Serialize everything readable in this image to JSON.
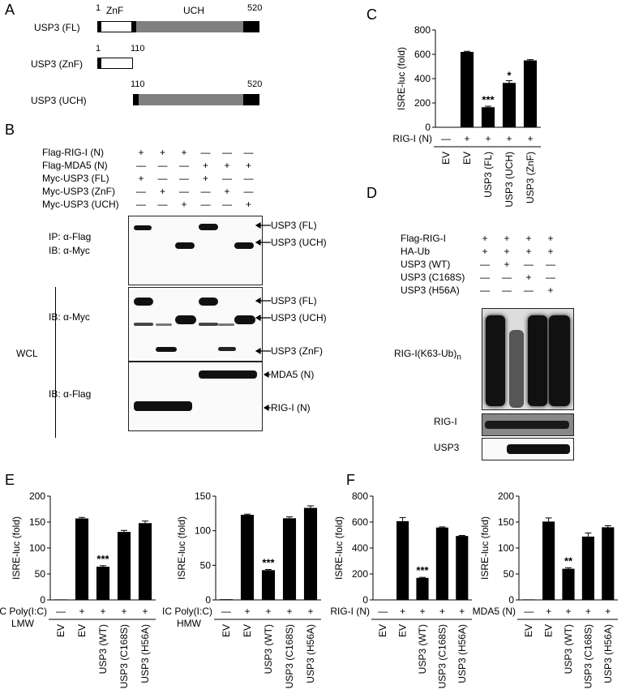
{
  "panels": {
    "A": "A",
    "B": "B",
    "C": "C",
    "D": "D",
    "E": "E",
    "F": "F"
  },
  "panelA": {
    "constructs": [
      {
        "label": "USP3 (FL)",
        "start": "1",
        "end": "520"
      },
      {
        "label": "USP3 (ZnF)",
        "start": "1",
        "end": "110"
      },
      {
        "label": "USP3 (UCH)",
        "start": "110",
        "end": "520"
      }
    ],
    "domain_znf": "ZnF",
    "domain_uch": "UCH"
  },
  "panelB": {
    "rows": [
      {
        "label": "Flag-RIG-I (N)",
        "signs": [
          "+",
          "+",
          "+",
          "—",
          "—",
          "—"
        ]
      },
      {
        "label": "Flag-MDA5 (N)",
        "signs": [
          "—",
          "—",
          "—",
          "+",
          "+",
          "+"
        ]
      },
      {
        "label": "Myc-USP3 (FL)",
        "signs": [
          "+",
          "—",
          "—",
          "+",
          "—",
          "—"
        ]
      },
      {
        "label": "Myc-USP3 (ZnF)",
        "signs": [
          "—",
          "+",
          "—",
          "—",
          "+",
          "—"
        ]
      },
      {
        "label": "Myc-USP3 (UCH)",
        "signs": [
          "—",
          "—",
          "+",
          "—",
          "—",
          "+"
        ]
      }
    ],
    "ip_label": "IP: α-Flag",
    "ib_myc_label1": "IB: α-Myc",
    "ib_myc_label2": "IB: α-Myc",
    "ib_flag_label": "IB: α-Flag",
    "wcl_label": "WCL",
    "band_labels": {
      "ip_fl": "USP3 (FL)",
      "ip_uch": "USP3 (UCH)",
      "wcl_fl": "USP3 (FL)",
      "wcl_uch": "USP3 (UCH)",
      "wcl_znf": "USP3 (ZnF)",
      "mda5": "MDA5 (N)",
      "rigi": "RIG-I (N)"
    }
  },
  "panelD": {
    "rows": [
      {
        "label": "Flag-RIG-I",
        "signs": [
          "+",
          "+",
          "+",
          "+"
        ]
      },
      {
        "label": "HA-Ub",
        "signs": [
          "+",
          "+",
          "+",
          "+"
        ]
      },
      {
        "label": "USP3 (WT)",
        "signs": [
          "—",
          "+",
          "—",
          "—"
        ]
      },
      {
        "label": "USP3 (C168S)",
        "signs": [
          "—",
          "—",
          "+",
          "—"
        ]
      },
      {
        "label": "USP3 (H56A)",
        "signs": [
          "—",
          "—",
          "—",
          "+"
        ]
      }
    ],
    "blot_main": "RIG-I(K63-Ub)",
    "blot_main_sub": "n",
    "blot_rigi": "RIG-I",
    "blot_usp3": "USP3"
  },
  "chart_data": [
    {
      "id": "C",
      "type": "bar",
      "categories": [
        "EV",
        "EV",
        "USP3 (FL)",
        "USP3 (UCH)",
        "USP3 (ZnF)"
      ],
      "values": [
        3,
        620,
        165,
        365,
        550
      ],
      "errors": [
        0,
        5,
        8,
        18,
        6
      ],
      "significance": [
        "",
        "",
        "***",
        "*",
        ""
      ],
      "ylabel": "ISRE-luc  (fold)",
      "ylim": [
        0,
        800
      ],
      "yticks": [
        0,
        200,
        400,
        600,
        800
      ],
      "treatment_label": "RIG-I (N)",
      "treatment_signs": [
        "—",
        "+",
        "+",
        "+",
        "+"
      ]
    },
    {
      "id": "E1",
      "type": "bar",
      "categories": [
        "EV",
        "EV",
        "USP3 (WT)",
        "USP3 (C168S)",
        "USP3 (H56A)"
      ],
      "values": [
        1,
        157,
        64,
        131,
        148
      ],
      "errors": [
        0,
        2,
        2,
        3,
        4
      ],
      "significance": [
        "",
        "",
        "***",
        "",
        ""
      ],
      "ylabel": "ISRE-luc (fold)",
      "ylim": [
        0,
        200
      ],
      "yticks": [
        0,
        50,
        100,
        150,
        200
      ],
      "treatment_label": "IC Poly(I:C)",
      "treatment_label2": "LMW",
      "treatment_signs": [
        "—",
        "+",
        "+",
        "+",
        "+"
      ]
    },
    {
      "id": "E2",
      "type": "bar",
      "categories": [
        "EV",
        "EV",
        "USP3 (WT)",
        "USP3 (C168S)",
        "USP3 (H56A)"
      ],
      "values": [
        1,
        123,
        43,
        118,
        133
      ],
      "errors": [
        0,
        1,
        1,
        2,
        3
      ],
      "significance": [
        "",
        "",
        "***",
        "",
        ""
      ],
      "ylabel": "ISRE-luc (fold)",
      "ylim": [
        0,
        150
      ],
      "yticks": [
        0,
        50,
        100,
        150
      ],
      "treatment_label": "IC Poly(I:C)",
      "treatment_label2": "HMW",
      "treatment_signs": [
        "—",
        "+",
        "+",
        "+",
        "+"
      ]
    },
    {
      "id": "F1",
      "type": "bar",
      "categories": [
        "EV",
        "EV",
        "USP3 (WT)",
        "USP3 (C168S)",
        "USP3 (H56A)"
      ],
      "values": [
        3,
        607,
        170,
        558,
        493
      ],
      "errors": [
        0,
        28,
        4,
        5,
        4
      ],
      "significance": [
        "",
        "",
        "***",
        "",
        ""
      ],
      "ylabel": "ISRE-luc (fold)",
      "ylim": [
        0,
        800
      ],
      "yticks": [
        0,
        200,
        400,
        600,
        800
      ],
      "treatment_label": "RIG-I (N)",
      "treatment_signs": [
        "—",
        "+",
        "+",
        "+",
        "+"
      ]
    },
    {
      "id": "F2",
      "type": "bar",
      "categories": [
        "EV",
        "EV",
        "USP3 (WT)",
        "USP3 (C168S)",
        "USP3 (H56A)"
      ],
      "values": [
        1,
        151,
        60,
        122,
        140
      ],
      "errors": [
        0,
        7,
        2,
        7,
        3
      ],
      "significance": [
        "",
        "",
        "**",
        "",
        ""
      ],
      "ylabel": "ISRE-luc (fold)",
      "ylim": [
        0,
        200
      ],
      "yticks": [
        0,
        50,
        100,
        150,
        200
      ],
      "treatment_label": "MDA5 (N)",
      "treatment_signs": [
        "—",
        "+",
        "+",
        "+",
        "+"
      ]
    }
  ]
}
